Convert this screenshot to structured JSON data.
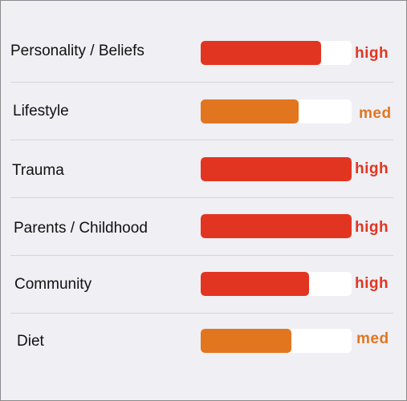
{
  "colors": {
    "high": "#e23521",
    "med": "#e2761f",
    "track": "#ffffff",
    "background": "#efeff4"
  },
  "rows": [
    {
      "label": "Personality / Beliefs",
      "level": "high",
      "fill": 0.8
    },
    {
      "label": "Lifestyle",
      "level": "med",
      "fill": 0.65
    },
    {
      "label": "Trauma",
      "level": "high",
      "fill": 1.0
    },
    {
      "label": "Parents / Childhood",
      "level": "high",
      "fill": 1.0
    },
    {
      "label": "Community",
      "level": "high",
      "fill": 0.72
    },
    {
      "label": "Diet",
      "level": "med",
      "fill": 0.6
    }
  ]
}
